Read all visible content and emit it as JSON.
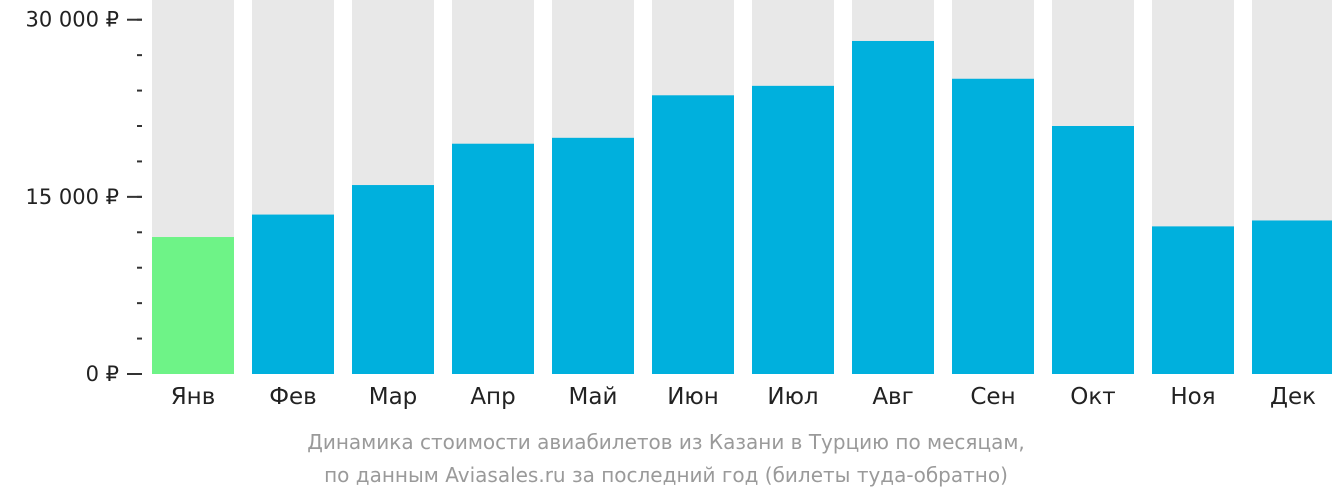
{
  "chart_data": {
    "type": "bar",
    "categories": [
      "Янв",
      "Фев",
      "Мар",
      "Апр",
      "Май",
      "Июн",
      "Июл",
      "Авг",
      "Сен",
      "Окт",
      "Ноя",
      "Дек"
    ],
    "values": [
      11600,
      13500,
      16000,
      19500,
      20000,
      23600,
      24400,
      28200,
      25000,
      21000,
      12500,
      13000
    ],
    "highlight_index": 0,
    "ylim": [
      0,
      31500
    ],
    "yticks": [
      {
        "value": 0,
        "label": "0 ₽"
      },
      {
        "value": 15000,
        "label": "15 000 ₽"
      },
      {
        "value": 30000,
        "label": "30 000 ₽"
      }
    ],
    "minor_tick_step": 3000,
    "colors": {
      "bar": "#00b0dd",
      "highlight": "#6ef387",
      "background_bar": "#e8e8e8",
      "tick": "#333333"
    }
  },
  "caption": {
    "line1": "Динамика стоимости авиабилетов из Казани в Турцию по месяцам,",
    "line2": "по данным Aviasales.ru за последний год (билеты туда-обратно)"
  }
}
